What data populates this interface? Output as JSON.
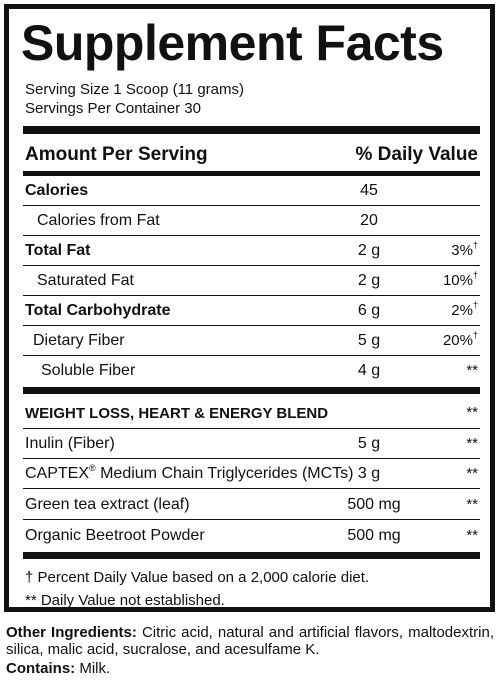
{
  "title": "Supplement Facts",
  "serving_size": "Serving Size 1 Scoop (11 grams)",
  "servings_per_container": "Servings Per Container 30",
  "header": {
    "amount": "Amount Per Serving",
    "dv": "% Daily Value"
  },
  "nutrients": [
    {
      "name": "Calories",
      "amount": "45",
      "dv": "",
      "bold": true
    },
    {
      "name": "Calories from Fat",
      "amount": "20",
      "dv": "",
      "indent": 1
    },
    {
      "name": "Total Fat",
      "amount": "2 g",
      "dv": "3%",
      "mark": "†",
      "bold": true
    },
    {
      "name": "Saturated Fat",
      "amount": "2 g",
      "dv": "10%",
      "mark": "†",
      "indent": 1
    },
    {
      "name": "Total Carbohydrate",
      "amount": "6 g",
      "dv": "2%",
      "mark": "†",
      "bold": true
    },
    {
      "name": "Dietary Fiber",
      "amount": "5 g",
      "dv": "20%",
      "mark": "†",
      "indent": 1
    },
    {
      "name": "Soluble Fiber",
      "amount": "4 g",
      "dv": "**",
      "indent": 2
    }
  ],
  "blend": {
    "name": "WEIGHT LOSS, HEART & ENERGY BLEND",
    "dv": "**",
    "items": [
      {
        "name": "Inulin (Fiber)",
        "amount": "5 g",
        "dv": "**"
      },
      {
        "name": "CAPTEX",
        "reg": "®",
        "name_rest": " Medium Chain Triglycerides (MCTs)",
        "amount": "3 g",
        "dv": "**"
      },
      {
        "name": "Green tea extract (leaf)",
        "amount": "500 mg",
        "dv": "**"
      },
      {
        "name": "Organic Beetroot Powder",
        "amount": "500 mg",
        "dv": "**"
      }
    ]
  },
  "footnotes": {
    "dagger": "† Percent Daily Value based on a 2,000 calorie diet.",
    "stars": "** Daily Value not established."
  },
  "other_ingredients_label": "Other Ingredients:",
  "other_ingredients": "Citric acid, natural and artificial flavors, maltodextrin, silica, malic acid, sucralose, and acesulfame K.",
  "contains_label": "Contains:",
  "contains": "Milk."
}
